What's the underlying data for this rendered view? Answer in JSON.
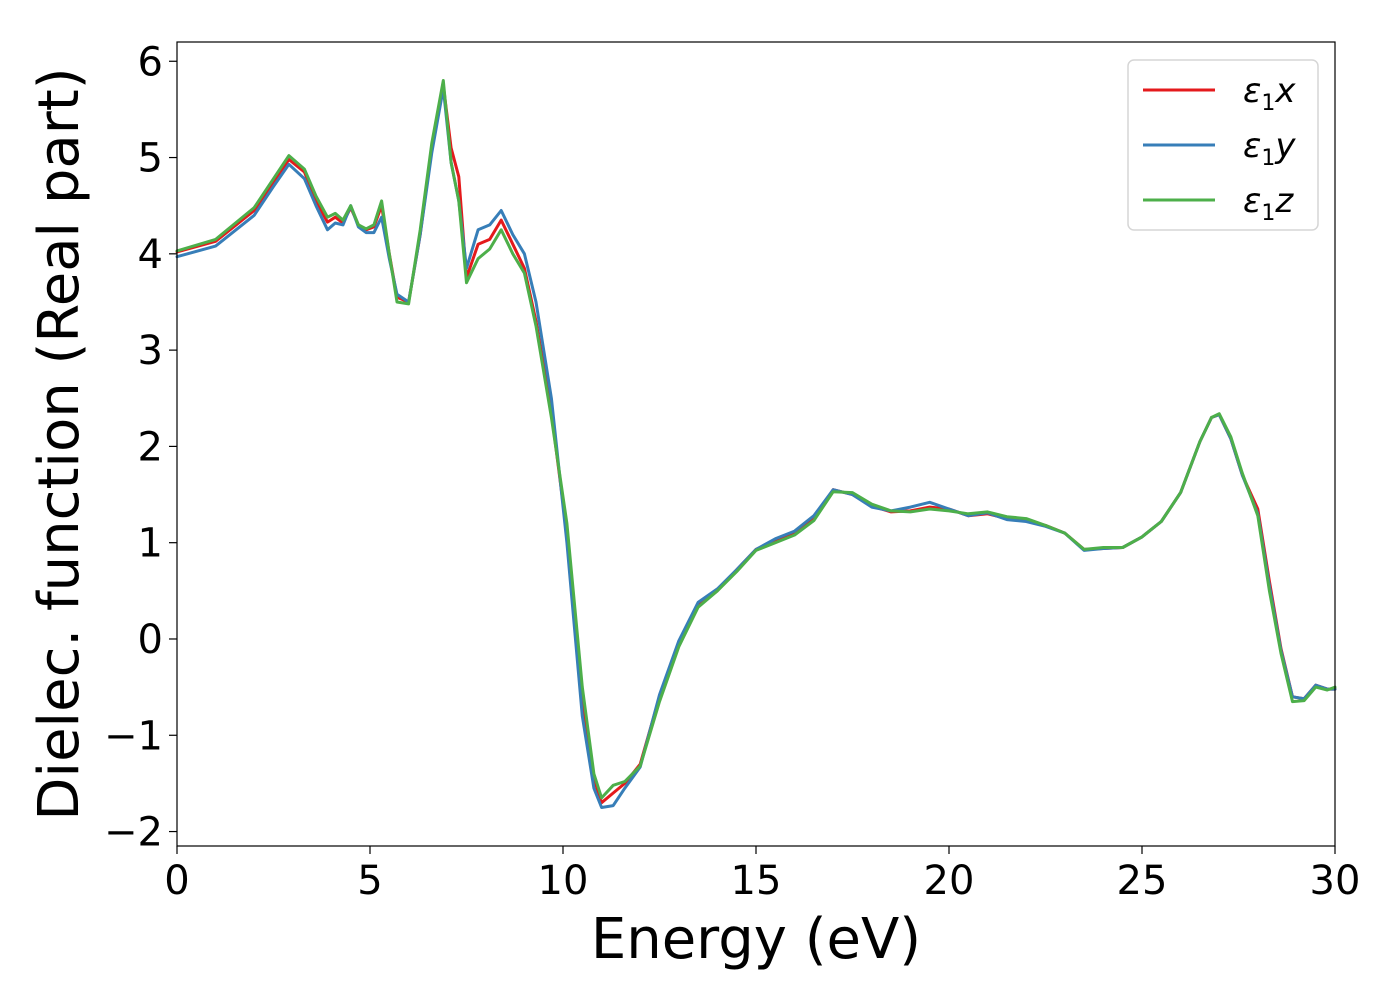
{
  "chart_data": {
    "type": "line",
    "title": "",
    "xlabel": "Energy (eV)",
    "ylabel": "Dielec. function (Real part)",
    "xlim": [
      0,
      30
    ],
    "ylim": [
      -2.15,
      6.2
    ],
    "xticks": [
      0,
      5,
      10,
      15,
      20,
      25,
      30
    ],
    "yticks": [
      -2,
      -1,
      0,
      1,
      2,
      3,
      4,
      5,
      6
    ],
    "xtick_labels": [
      "0",
      "5",
      "10",
      "15",
      "20",
      "25",
      "30"
    ],
    "ytick_labels": [
      "−2",
      "−1",
      "0",
      "1",
      "2",
      "3",
      "4",
      "5",
      "6"
    ],
    "grid": false,
    "legend_position": "top-right",
    "series": [
      {
        "name": "ε1x",
        "legend_main": "ε",
        "legend_sub": "1",
        "legend_var": "x",
        "color": "#e41a1c",
        "x": [
          0,
          1,
          2,
          2.5,
          2.9,
          3.3,
          3.6,
          3.9,
          4.1,
          4.3,
          4.5,
          4.7,
          4.9,
          5.1,
          5.3,
          5.5,
          5.7,
          6.0,
          6.3,
          6.6,
          6.9,
          7.1,
          7.3,
          7.5,
          7.8,
          8.1,
          8.4,
          8.7,
          9.0,
          9.3,
          9.7,
          10.1,
          10.5,
          10.8,
          11.0,
          11.3,
          11.6,
          12.0,
          12.5,
          13.0,
          13.5,
          14.0,
          14.5,
          15.0,
          15.5,
          16.0,
          16.5,
          17.0,
          17.5,
          18.0,
          18.5,
          19.0,
          19.5,
          20.0,
          20.5,
          21.0,
          21.5,
          22.0,
          22.5,
          23.0,
          23.5,
          24.0,
          24.5,
          25.0,
          25.5,
          26.0,
          26.5,
          26.8,
          27.0,
          27.3,
          27.6,
          28.0,
          28.3,
          28.6,
          28.9,
          29.2,
          29.5,
          29.8,
          30.0
        ],
        "y": [
          4.02,
          4.13,
          4.45,
          4.75,
          4.98,
          4.85,
          4.55,
          4.33,
          4.38,
          4.32,
          4.48,
          4.3,
          4.25,
          4.28,
          4.5,
          4.0,
          3.55,
          3.5,
          4.2,
          5.1,
          5.75,
          5.1,
          4.8,
          3.75,
          4.1,
          4.15,
          4.35,
          4.1,
          3.85,
          3.3,
          2.35,
          1.1,
          -0.6,
          -1.45,
          -1.7,
          -1.6,
          -1.5,
          -1.3,
          -0.6,
          -0.05,
          0.35,
          0.5,
          0.72,
          0.93,
          1.02,
          1.1,
          1.25,
          1.55,
          1.5,
          1.38,
          1.32,
          1.33,
          1.37,
          1.35,
          1.28,
          1.3,
          1.25,
          1.23,
          1.18,
          1.1,
          0.93,
          0.94,
          0.95,
          1.06,
          1.22,
          1.52,
          2.05,
          2.3,
          2.33,
          2.08,
          1.7,
          1.35,
          0.6,
          -0.1,
          -0.6,
          -0.62,
          -0.48,
          -0.52,
          -0.52
        ]
      },
      {
        "name": "ε1y",
        "legend_main": "ε",
        "legend_sub": "1",
        "legend_var": "y",
        "color": "#377eb8",
        "x": [
          0,
          1,
          2,
          2.5,
          2.9,
          3.3,
          3.6,
          3.9,
          4.1,
          4.3,
          4.5,
          4.7,
          4.9,
          5.1,
          5.3,
          5.5,
          5.7,
          6.0,
          6.3,
          6.6,
          6.9,
          7.1,
          7.3,
          7.5,
          7.8,
          8.1,
          8.4,
          8.7,
          9.0,
          9.3,
          9.7,
          10.1,
          10.5,
          10.8,
          11.0,
          11.3,
          11.6,
          12.0,
          12.5,
          13.0,
          13.5,
          14.0,
          14.5,
          15.0,
          15.5,
          16.0,
          16.5,
          17.0,
          17.5,
          18.0,
          18.5,
          19.0,
          19.5,
          20.0,
          20.5,
          21.0,
          21.5,
          22.0,
          22.5,
          23.0,
          23.5,
          24.0,
          24.5,
          25.0,
          25.5,
          26.0,
          26.5,
          26.8,
          27.0,
          27.3,
          27.6,
          28.0,
          28.3,
          28.6,
          28.9,
          29.2,
          29.5,
          29.8,
          30.0
        ],
        "y": [
          3.97,
          4.08,
          4.4,
          4.7,
          4.93,
          4.78,
          4.5,
          4.25,
          4.32,
          4.3,
          4.5,
          4.28,
          4.22,
          4.22,
          4.38,
          3.95,
          3.58,
          3.5,
          4.2,
          5.05,
          5.72,
          4.95,
          4.55,
          3.85,
          4.25,
          4.3,
          4.45,
          4.2,
          4.0,
          3.5,
          2.5,
          1.0,
          -0.8,
          -1.55,
          -1.75,
          -1.73,
          -1.55,
          -1.33,
          -0.58,
          -0.02,
          0.38,
          0.52,
          0.72,
          0.93,
          1.04,
          1.12,
          1.28,
          1.55,
          1.5,
          1.37,
          1.33,
          1.37,
          1.42,
          1.35,
          1.28,
          1.31,
          1.24,
          1.22,
          1.17,
          1.1,
          0.92,
          0.94,
          0.95,
          1.06,
          1.22,
          1.52,
          2.05,
          2.3,
          2.33,
          2.08,
          1.7,
          1.3,
          0.55,
          -0.12,
          -0.6,
          -0.62,
          -0.48,
          -0.52,
          -0.52
        ]
      },
      {
        "name": "ε1z",
        "legend_main": "ε",
        "legend_sub": "1",
        "legend_var": "z",
        "color": "#4daf4a",
        "x": [
          0,
          1,
          2,
          2.5,
          2.9,
          3.3,
          3.6,
          3.9,
          4.1,
          4.3,
          4.5,
          4.7,
          4.9,
          5.1,
          5.3,
          5.5,
          5.7,
          6.0,
          6.3,
          6.6,
          6.9,
          7.1,
          7.3,
          7.5,
          7.8,
          8.1,
          8.4,
          8.7,
          9.0,
          9.3,
          9.7,
          10.1,
          10.5,
          10.8,
          11.0,
          11.3,
          11.6,
          12.0,
          12.5,
          13.0,
          13.5,
          14.0,
          14.5,
          15.0,
          15.5,
          16.0,
          16.5,
          17.0,
          17.5,
          18.0,
          18.5,
          19.0,
          19.5,
          20.0,
          20.5,
          21.0,
          21.5,
          22.0,
          22.5,
          23.0,
          23.5,
          24.0,
          24.5,
          25.0,
          25.5,
          26.0,
          26.5,
          26.8,
          27.0,
          27.3,
          27.6,
          28.0,
          28.3,
          28.6,
          28.9,
          29.2,
          29.5,
          29.8,
          30.0
        ],
        "y": [
          4.03,
          4.15,
          4.48,
          4.78,
          5.02,
          4.88,
          4.6,
          4.38,
          4.42,
          4.35,
          4.5,
          4.3,
          4.26,
          4.3,
          4.55,
          4.0,
          3.5,
          3.48,
          4.25,
          5.15,
          5.8,
          4.95,
          4.55,
          3.7,
          3.95,
          4.05,
          4.25,
          4.0,
          3.8,
          3.25,
          2.3,
          1.2,
          -0.5,
          -1.4,
          -1.65,
          -1.52,
          -1.48,
          -1.32,
          -0.65,
          -0.08,
          0.33,
          0.5,
          0.7,
          0.92,
          1.0,
          1.08,
          1.23,
          1.53,
          1.52,
          1.4,
          1.33,
          1.32,
          1.35,
          1.33,
          1.3,
          1.32,
          1.27,
          1.25,
          1.18,
          1.1,
          0.93,
          0.95,
          0.95,
          1.06,
          1.22,
          1.52,
          2.05,
          2.3,
          2.34,
          2.1,
          1.72,
          1.28,
          0.5,
          -0.15,
          -0.65,
          -0.64,
          -0.5,
          -0.53,
          -0.5
        ]
      }
    ]
  }
}
